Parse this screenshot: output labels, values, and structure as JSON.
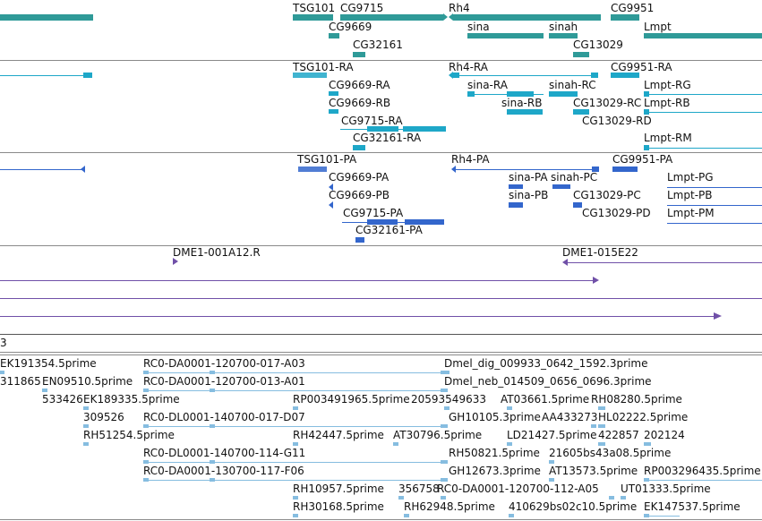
{
  "tracks": {
    "genes": {
      "labels": [
        "TSG101",
        "CG9715",
        "Rh4",
        "CG9951",
        "CG9669",
        "sina",
        "sinah",
        "Lmpt",
        "CG32161",
        "CG13029"
      ]
    },
    "transcripts_ra": {
      "labels": [
        "TSG101-RA",
        "Rh4-RA",
        "CG9951-RA",
        "CG9669-RA",
        "sina-RA",
        "sinah-RC",
        "Lmpt-RG",
        "CG9669-RB",
        "sina-RB",
        "CG13029-RC",
        "Lmpt-RB",
        "CG9715-RA",
        "CG13029-RD",
        "CG32161-RA",
        "Lmpt-RM"
      ]
    },
    "transcripts_pa": {
      "labels": [
        "TSG101-PA",
        "Rh4-PA",
        "CG9951-PA",
        "CG9669-PA",
        "sina-PA",
        "sinah-PC",
        "Lmpt-PG",
        "CG9669-PB",
        "sina-PB",
        "CG13029-PC",
        "Lmpt-PB",
        "CG9715-PA",
        "CG13029-PD",
        "Lmpt-PM",
        "CG32161-PA"
      ]
    },
    "clones": {
      "labels": [
        "DME1-001A12.R",
        "DME1-015E22"
      ]
    },
    "partial": {
      "label": "3"
    },
    "ests": {
      "labels": [
        "EK191354.5prime",
        "RC0-DA0001-120700-017-A03",
        "Dmel_dig_009933_0642_1592.3prime",
        "311865",
        "EN09510.5prime",
        "RC0-DA0001-120700-013-A01",
        "Dmel_neb_014509_0656_0696.3prime",
        "533426",
        "EK189335.5prime",
        "RP003491965.5prime",
        "20593549633",
        "AT03661.5prime",
        "RH08280.5prime",
        "309526",
        "RC0-DL0001-140700-017-D07",
        "GH10105.3prime",
        "AA433273",
        "HL02222.5prime",
        "RH51254.5prime",
        "RH42447.5prime",
        "AT30796.5prime",
        "LD21427.5prime",
        "422857",
        "202124",
        "RC0-DL0001-140700-114-G11",
        "RH50821.5prime",
        "21605bs43a08.5prime",
        "RC0-DA0001-130700-117-F06",
        "GH12673.3prime",
        "AT13573.5prime",
        "RP003296435.5prime",
        "RH10957.5prime",
        "356758",
        "RC0-DA0001-120700-112-A05",
        "UT01333.5prime",
        "RH30168.5prime",
        "RH62948.5prime",
        "410629bs02c10.5prime",
        "EK147537.5prime"
      ]
    }
  },
  "colors": {
    "gene": "#2f9a98",
    "transcript": "#1ea7c8",
    "protein": "#3366cc",
    "clone": "#7050a8",
    "est": "#86bde0",
    "separator": "#8a8a8a"
  }
}
